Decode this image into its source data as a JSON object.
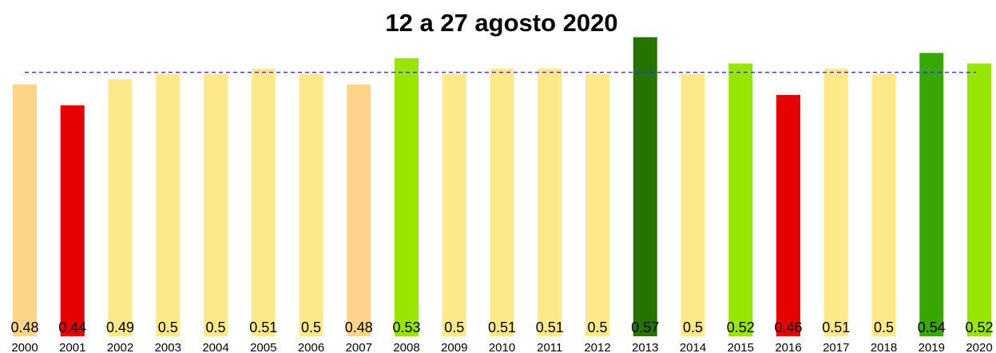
{
  "chart_data": {
    "type": "bar",
    "title": "12 a 27 agosto 2020",
    "categories": [
      "2000",
      "2001",
      "2002",
      "2003",
      "2004",
      "2005",
      "2006",
      "2007",
      "2008",
      "2009",
      "2010",
      "2011",
      "2012",
      "2013",
      "2014",
      "2015",
      "2016",
      "2017",
      "2018",
      "2019",
      "2020"
    ],
    "values": [
      0.48,
      0.44,
      0.49,
      0.5,
      0.5,
      0.51,
      0.5,
      0.48,
      0.53,
      0.5,
      0.51,
      0.51,
      0.5,
      0.57,
      0.5,
      0.52,
      0.46,
      0.51,
      0.5,
      0.54,
      0.52
    ],
    "colors": [
      "#fdd58a",
      "#e60000",
      "#fde98a",
      "#fde98a",
      "#fde98a",
      "#fde98a",
      "#fde98a",
      "#fdd58a",
      "#98e600",
      "#fde98a",
      "#fde98a",
      "#fde98a",
      "#fde98a",
      "#267300",
      "#fde98a",
      "#98e600",
      "#e60000",
      "#fde98a",
      "#fde98a",
      "#38a800",
      "#98e600"
    ],
    "ylim": [
      0,
      0.58
    ],
    "reference_line": 0.503,
    "reference_color": "#3535c8"
  }
}
